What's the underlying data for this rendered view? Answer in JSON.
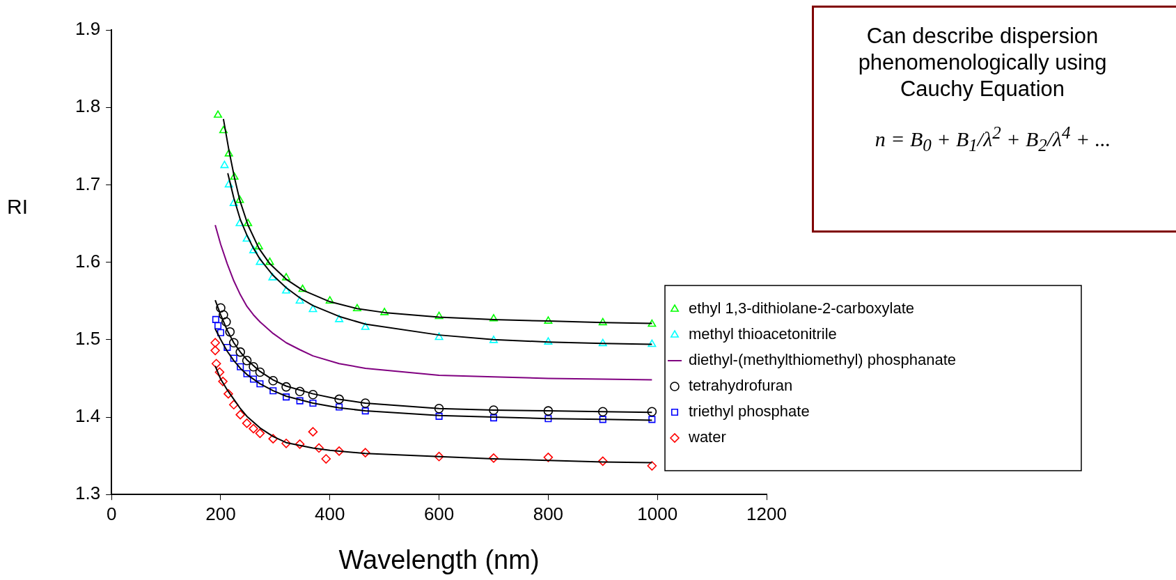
{
  "chart_data": {
    "type": "scatter",
    "xlabel": "Wavelength (nm)",
    "ylabel": "RI",
    "xlim": [
      0,
      1200
    ],
    "xticks": [
      0,
      200,
      400,
      600,
      800,
      1000,
      1200
    ],
    "ylim": [
      1.3,
      1.9
    ],
    "yticks": [
      1.3,
      1.4,
      1.5,
      1.6,
      1.7,
      1.8,
      1.9
    ],
    "grid": false,
    "legend": "right",
    "annotations": [
      "Can describe dispersion phenomenologically using Cauchy Equation",
      "n = B$_{0}$ + B$_{1}$/λ$^{2}$ + B$_{2}$/λ$^{4}$ + ..."
    ],
    "series": [
      {
        "name": "ethyl 1,3-dithiolane-2-carboxylate",
        "color": "#00ff00",
        "marker": "triangle",
        "x": [
          195,
          205,
          215,
          225,
          235,
          250,
          270,
          290,
          320,
          350,
          400,
          450,
          500,
          600,
          700,
          800,
          900,
          990
        ],
        "values": [
          1.79,
          1.77,
          1.74,
          1.71,
          1.68,
          1.65,
          1.62,
          1.6,
          1.58,
          1.565,
          1.55,
          1.54,
          1.535,
          1.53,
          1.527,
          1.524,
          1.522,
          1.52
        ]
      },
      {
        "name": "methyl thioacetonitrile",
        "color": "#00ffff",
        "marker": "triangle",
        "x": [
          207,
          215,
          224,
          235,
          248,
          260,
          272,
          295,
          320,
          345,
          369,
          417,
          465,
          600,
          700,
          800,
          900,
          990
        ],
        "values": [
          1.725,
          1.7,
          1.676,
          1.65,
          1.63,
          1.615,
          1.6,
          1.58,
          1.563,
          1.55,
          1.539,
          1.526,
          1.516,
          1.503,
          1.499,
          1.497,
          1.495,
          1.494
        ]
      },
      {
        "name": "diethyl-(methylthiomethyl) phosphanate",
        "type": "line",
        "color": "#800080",
        "marker": "none",
        "x": [
          190,
          200,
          212,
          224,
          236,
          248,
          260,
          272,
          296,
          320,
          345,
          369,
          417,
          465,
          600,
          700,
          800,
          900,
          990
        ],
        "values": [
          1.648,
          1.623,
          1.598,
          1.576,
          1.558,
          1.543,
          1.532,
          1.523,
          1.508,
          1.496,
          1.487,
          1.479,
          1.469,
          1.463,
          1.454,
          1.452,
          1.45,
          1.449,
          1.448
        ]
      },
      {
        "name": "tetrahydrofuran",
        "color": "#000000",
        "marker": "circle",
        "x": [
          200,
          205,
          210,
          217,
          224,
          236,
          248,
          260,
          272,
          296,
          320,
          345,
          369,
          417,
          465,
          600,
          700,
          800,
          900,
          990
        ],
        "values": [
          1.541,
          1.532,
          1.523,
          1.51,
          1.496,
          1.484,
          1.473,
          1.465,
          1.458,
          1.447,
          1.439,
          1.433,
          1.429,
          1.423,
          1.418,
          1.411,
          1.409,
          1.408,
          1.407,
          1.407
        ]
      },
      {
        "name": "triethyl phosphate",
        "color": "#0000ff",
        "marker": "square",
        "x": [
          191,
          195,
          200,
          212,
          224,
          236,
          248,
          260,
          272,
          296,
          320,
          345,
          369,
          417,
          465,
          600,
          700,
          800,
          900,
          990
        ],
        "values": [
          1.526,
          1.518,
          1.509,
          1.49,
          1.476,
          1.465,
          1.456,
          1.449,
          1.443,
          1.434,
          1.426,
          1.421,
          1.418,
          1.413,
          1.408,
          1.401,
          1.399,
          1.398,
          1.397,
          1.397
        ]
      },
      {
        "name": "water",
        "color": "#ff0000",
        "marker": "diamond",
        "x": [
          190,
          190,
          192,
          198,
          204,
          214,
          224,
          236,
          248,
          260,
          272,
          296,
          320,
          345,
          369,
          380,
          393,
          417,
          465,
          600,
          700,
          800,
          900,
          990
        ],
        "values": [
          1.496,
          1.486,
          1.469,
          1.458,
          1.446,
          1.43,
          1.416,
          1.403,
          1.392,
          1.385,
          1.379,
          1.372,
          1.366,
          1.365,
          1.381,
          1.36,
          1.346,
          1.356,
          1.354,
          1.349,
          1.347,
          1.348,
          1.343,
          1.337
        ]
      },
      {
        "type": "line",
        "color": "#000000",
        "marker": "none",
        "x": [
          205,
          215,
          225,
          235,
          250,
          270,
          290,
          320,
          350,
          400,
          450,
          500,
          600,
          700,
          800,
          900,
          990
        ],
        "values": [
          1.785,
          1.745,
          1.71,
          1.68,
          1.648,
          1.618,
          1.598,
          1.578,
          1.564,
          1.549,
          1.54,
          1.535,
          1.529,
          1.526,
          1.524,
          1.522,
          1.521
        ]
      },
      {
        "type": "line",
        "color": "#000000",
        "marker": "none",
        "x": [
          213,
          224,
          236,
          248,
          260,
          272,
          296,
          320,
          345,
          369,
          417,
          465,
          600,
          700,
          800,
          900,
          990
        ],
        "values": [
          1.715,
          1.683,
          1.655,
          1.635,
          1.618,
          1.604,
          1.583,
          1.567,
          1.554,
          1.544,
          1.53,
          1.52,
          1.506,
          1.5,
          1.497,
          1.495,
          1.494
        ]
      },
      {
        "type": "line",
        "color": "#000000",
        "marker": "none",
        "x": [
          190,
          200,
          212,
          224,
          236,
          248,
          272,
          296,
          320,
          369,
          417,
          465,
          600,
          700,
          800,
          900,
          990
        ],
        "values": [
          1.551,
          1.532,
          1.512,
          1.496,
          1.484,
          1.474,
          1.459,
          1.448,
          1.44,
          1.43,
          1.423,
          1.418,
          1.411,
          1.409,
          1.408,
          1.407,
          1.406
        ]
      },
      {
        "type": "line",
        "color": "#000000",
        "marker": "none",
        "x": [
          190,
          200,
          212,
          224,
          236,
          248,
          272,
          296,
          320,
          369,
          417,
          465,
          600,
          700,
          800,
          900,
          990
        ],
        "values": [
          1.514,
          1.5,
          1.485,
          1.473,
          1.463,
          1.455,
          1.443,
          1.434,
          1.427,
          1.418,
          1.412,
          1.408,
          1.402,
          1.4,
          1.398,
          1.397,
          1.396
        ]
      },
      {
        "type": "line",
        "color": "#000000",
        "marker": "none",
        "x": [
          190,
          200,
          212,
          224,
          236,
          248,
          272,
          296,
          320,
          369,
          400,
          465,
          600,
          700,
          800,
          900,
          990
        ],
        "values": [
          1.466,
          1.449,
          1.435,
          1.423,
          1.411,
          1.401,
          1.386,
          1.375,
          1.367,
          1.36,
          1.357,
          1.353,
          1.349,
          1.346,
          1.344,
          1.342,
          1.341
        ]
      }
    ]
  }
}
